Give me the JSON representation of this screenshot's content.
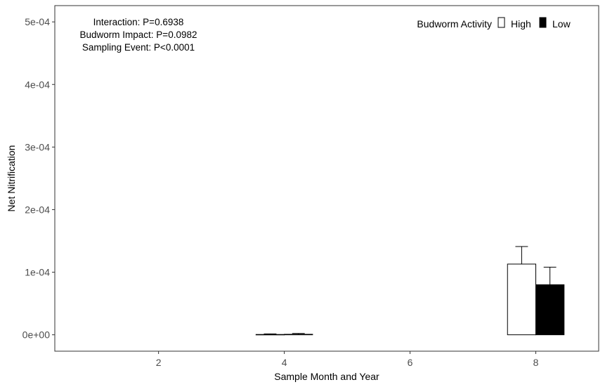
{
  "chart_data": {
    "type": "bar",
    "xlabel": "Sample Month and Year",
    "ylabel": "Net Nitrification",
    "xlim": [
      0.35,
      9.0
    ],
    "ylim": [
      -2.62e-05,
      0.000526
    ],
    "x_ticks": [
      2,
      4,
      6,
      8
    ],
    "x_tick_labels": [
      "2",
      "4",
      "6",
      "8"
    ],
    "y_ticks": [
      0,
      0.0001,
      0.0002,
      0.0003,
      0.0004,
      0.0005
    ],
    "y_tick_labels": [
      "0e+00",
      "1e-04",
      "2e-04",
      "3e-04",
      "4e-04",
      "5e-04"
    ],
    "grid": false,
    "legend": {
      "title": "Budworm Activity",
      "position": "top-right",
      "entries": [
        {
          "label": "High",
          "fill": "#ffffff"
        },
        {
          "label": "Low",
          "fill": "#000000"
        }
      ]
    },
    "annotations": [
      "Interaction: P=0.6938",
      "Budworm Impact: P=0.0982",
      "Sampling Event: P<0.0001"
    ],
    "annotation_position": "top-left",
    "bar_width": 0.45,
    "series": [
      {
        "name": "High",
        "fill": "#ffffff",
        "x": [
          4,
          8
        ],
        "values": [
          5e-07,
          0.000113
        ],
        "error_upper": [
          1.5e-06,
          0.000141
        ]
      },
      {
        "name": "Low",
        "fill": "#000000",
        "x": [
          4,
          8
        ],
        "values": [
          8e-07,
          8e-05
        ],
        "error_upper": [
          2.2e-06,
          0.000108
        ]
      }
    ]
  }
}
